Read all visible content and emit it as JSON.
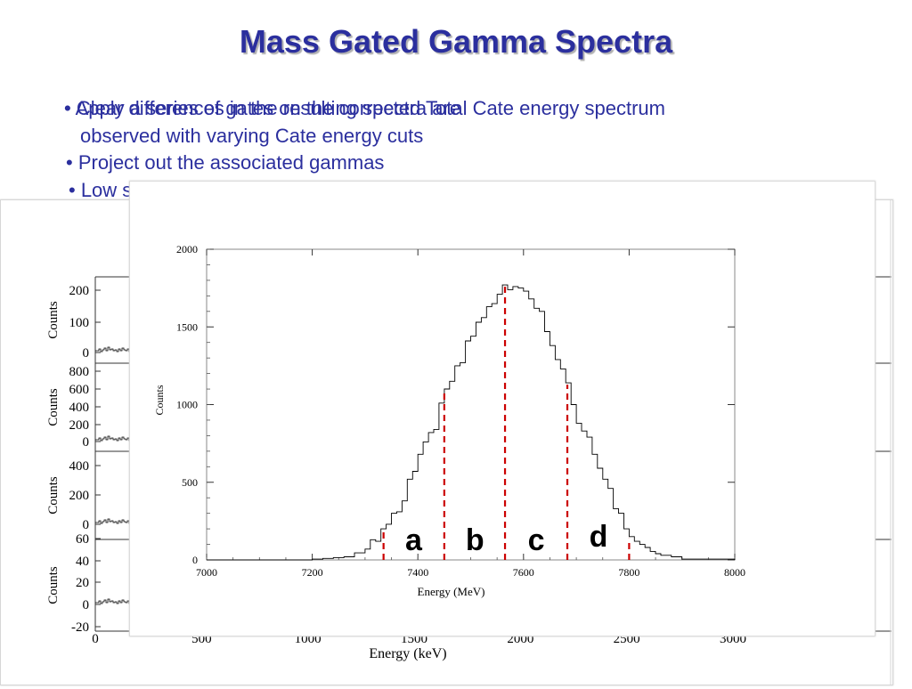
{
  "title": "Mass Gated Gamma Spectra",
  "bullets": {
    "overlap_a": "• Apply a series of gates on the corrected Total Cate energy spectrum",
    "overlap_b": "• Clear differences in the resulting spectra are",
    "line2": "observed with varying Cate energy cuts",
    "line3": "• Project out the associated gammas",
    "line4": "• Low statistics due to small cut regions"
  },
  "colors": {
    "title": "#2b2f9e",
    "text": "#2b2f9e",
    "gate_lines": "#cc0000",
    "histogram": "#000000"
  },
  "chart_data": [
    {
      "type": "line",
      "xlabel": "Energy (MeV)",
      "ylabel": "Counts",
      "xlim": [
        7000,
        8000
      ],
      "ylim": [
        0,
        2000
      ],
      "x_ticks": [
        7000,
        7200,
        7400,
        7600,
        7800,
        8000
      ],
      "y_ticks": [
        0,
        500,
        1000,
        1500,
        2000
      ],
      "grid": false,
      "histogram": {
        "x": [
          7000,
          7200,
          7220,
          7240,
          7260,
          7280,
          7300,
          7310,
          7320,
          7330,
          7340,
          7350,
          7360,
          7370,
          7380,
          7390,
          7400,
          7410,
          7420,
          7430,
          7440,
          7450,
          7460,
          7470,
          7480,
          7490,
          7500,
          7510,
          7520,
          7530,
          7540,
          7550,
          7560,
          7570,
          7580,
          7590,
          7600,
          7610,
          7620,
          7630,
          7640,
          7650,
          7660,
          7670,
          7680,
          7690,
          7700,
          7710,
          7720,
          7730,
          7740,
          7750,
          7760,
          7770,
          7780,
          7790,
          7800,
          7810,
          7820,
          7830,
          7840,
          7850,
          7860,
          7880,
          7900,
          8000
        ],
        "y": [
          0,
          5,
          10,
          15,
          20,
          45,
          70,
          130,
          120,
          200,
          230,
          300,
          310,
          380,
          520,
          570,
          680,
          760,
          820,
          840,
          1010,
          1100,
          1150,
          1250,
          1270,
          1410,
          1440,
          1530,
          1560,
          1630,
          1650,
          1710,
          1770,
          1740,
          1760,
          1750,
          1730,
          1680,
          1620,
          1600,
          1470,
          1380,
          1290,
          1230,
          1140,
          1000,
          880,
          830,
          790,
          680,
          590,
          520,
          460,
          330,
          300,
          200,
          150,
          120,
          100,
          80,
          55,
          40,
          30,
          20,
          5,
          0
        ]
      },
      "gates": {
        "x": [
          7335,
          7450,
          7565,
          7683,
          7800
        ],
        "labels": [
          "a",
          "b",
          "c",
          "d"
        ],
        "label_x": [
          7392,
          7508,
          7624,
          7742
        ]
      }
    },
    {
      "type": "line",
      "partially_hidden": true,
      "xlabel": "Energy (keV)",
      "x_tick_labels": [
        "0",
        "500",
        "1000",
        "1500",
        "2000",
        "2500",
        "3000"
      ],
      "x_tick_values": [
        0,
        500,
        1000,
        1500,
        2000,
        2500,
        3000
      ],
      "xlim": [
        0,
        3000
      ],
      "panels": [
        {
          "ylabel": "Counts",
          "y_ticks": [
            "200",
            "100",
            "0"
          ],
          "y_tick_values": [
            200,
            100,
            0
          ],
          "ylim": [
            0,
            250
          ]
        },
        {
          "ylabel": "Counts",
          "y_ticks": [
            "800",
            "600",
            "400",
            "200",
            "0"
          ],
          "y_tick_values": [
            800,
            600,
            400,
            200,
            0
          ],
          "ylim": [
            0,
            900
          ]
        },
        {
          "ylabel": "Counts",
          "y_ticks": [
            "400",
            "200",
            "0"
          ],
          "y_tick_values": [
            400,
            200,
            0
          ],
          "ylim": [
            0,
            500
          ]
        },
        {
          "ylabel": "Counts",
          "y_ticks": [
            "60",
            "40",
            "20",
            "0",
            "-20"
          ],
          "y_tick_values": [
            60,
            40,
            20,
            0,
            -20
          ],
          "ylim": [
            -20,
            70
          ]
        }
      ]
    }
  ]
}
